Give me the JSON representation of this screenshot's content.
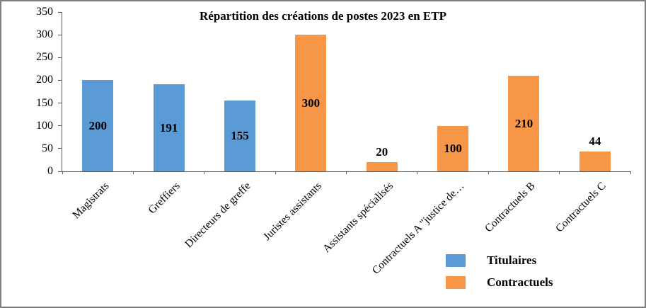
{
  "chart_data": {
    "type": "bar",
    "title": "Répartition des créations de postes 2023 en ETP",
    "categories": [
      "Magistrats",
      "Greffiers",
      "Directeurs de greffe",
      "Juristes assistants",
      "Assistants spécialisés",
      "Contractuels A \"justice de…",
      "Contractuels B",
      "Contractuels C"
    ],
    "values": [
      200,
      191,
      155,
      300,
      20,
      100,
      210,
      44
    ],
    "series_of_category": [
      "Titulaires",
      "Titulaires",
      "Titulaires",
      "Contractuels",
      "Contractuels",
      "Contractuels",
      "Contractuels",
      "Contractuels"
    ],
    "data_labels": [
      200,
      191,
      155,
      300,
      20,
      100,
      210,
      44
    ],
    "xlabel": "",
    "ylabel": "",
    "ylim": [
      0,
      350
    ],
    "y_ticks": [
      0,
      50,
      100,
      150,
      200,
      250,
      300,
      350
    ],
    "grid": false,
    "legend_position": "bottom-right",
    "legend": [
      {
        "label": "Titulaires",
        "color": "#5b9bd5"
      },
      {
        "label": "Contractuels",
        "color": "#f79646"
      }
    ],
    "colors": {
      "Titulaires": "#5b9bd5",
      "Contractuels": "#f79646"
    },
    "axis_color": "#595959"
  }
}
